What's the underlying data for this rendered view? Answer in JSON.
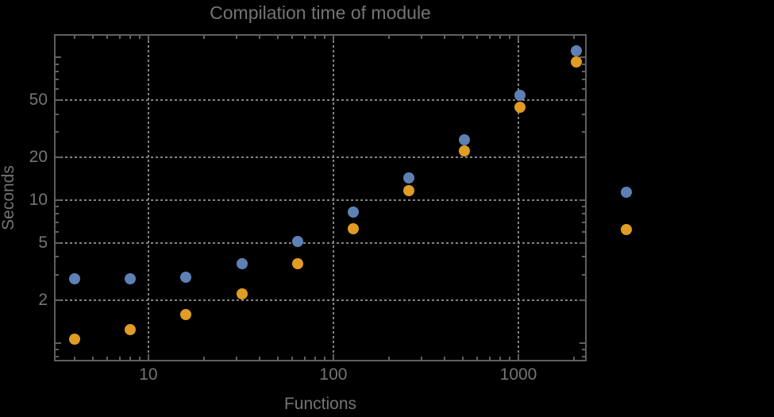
{
  "chart_data": {
    "type": "scatter",
    "title": "Compilation time of module",
    "xlabel": "Functions",
    "ylabel": "Seconds",
    "xscale": "log",
    "yscale": "log",
    "xlim": [
      3.15,
      2293
    ],
    "ylim": [
      0.76,
      142
    ],
    "grid": true,
    "x": [
      4,
      8,
      16,
      32,
      64,
      128,
      256,
      512,
      1024,
      2048
    ],
    "series": [
      {
        "name": "blue",
        "color": "#5e81b5",
        "values": [
          2.8,
          2.8,
          2.9,
          3.6,
          5.1,
          8.2,
          14.4,
          26.5,
          54,
          111
        ]
      },
      {
        "name": "orange",
        "color": "#e19c24",
        "values": [
          1.06,
          1.24,
          1.58,
          2.2,
          3.6,
          6.3,
          11.7,
          22,
          45,
          93
        ]
      }
    ],
    "x_tick_values": [
      10,
      100,
      1000
    ],
    "x_tick_labels": [
      "10",
      "100",
      "1000"
    ],
    "y_tick_values": [
      2,
      5,
      10,
      20,
      50
    ],
    "y_tick_labels": [
      "2",
      "5",
      "10",
      "20",
      "50"
    ],
    "legend_markers": [
      {
        "name": "blue",
        "color": "#5e81b5"
      },
      {
        "name": "orange",
        "color": "#e19c24"
      }
    ],
    "style": {
      "bg": "#000000",
      "frame": "#5f5f5f",
      "grid": "#828282",
      "text": "#747474"
    }
  }
}
